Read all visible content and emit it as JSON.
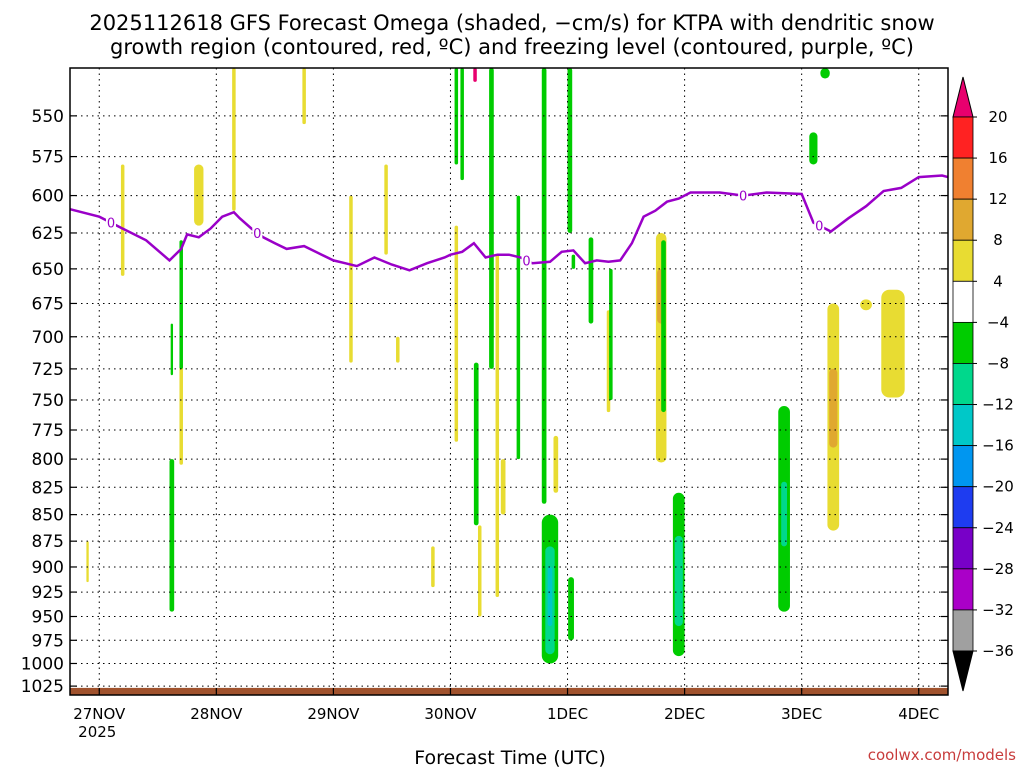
{
  "chart_data": {
    "type": "heatmap",
    "title_line1": "2025112618 GFS Forecast Omega (shaded, −cm/s) for KTPA with dendritic snow",
    "title_line2": "growth region (contoured, red, ºC) and freezing level (contoured, purple, ºC)",
    "xlabel": "Forecast Time (UTC)",
    "credit": "coolwx.com/models",
    "x_range_days": [
      -0.25,
      7.25
    ],
    "x_ticks": [
      {
        "day": 0,
        "label": "27NOV",
        "sub": "2025"
      },
      {
        "day": 1,
        "label": "28NOV",
        "sub": ""
      },
      {
        "day": 2,
        "label": "29NOV",
        "sub": ""
      },
      {
        "day": 3,
        "label": "30NOV",
        "sub": ""
      },
      {
        "day": 4,
        "label": "1DEC",
        "sub": ""
      },
      {
        "day": 5,
        "label": "2DEC",
        "sub": ""
      },
      {
        "day": 6,
        "label": "3DEC",
        "sub": ""
      },
      {
        "day": 7,
        "label": "4DEC",
        "sub": ""
      }
    ],
    "y_range_hpa": [
      1035,
      522
    ],
    "y_ticks": [
      550,
      575,
      600,
      625,
      650,
      675,
      700,
      725,
      750,
      775,
      800,
      825,
      850,
      875,
      900,
      925,
      950,
      975,
      1000,
      1025
    ],
    "colorbar": {
      "levels": [
        "20",
        "16",
        "12",
        "8",
        "4",
        "−4",
        "−8",
        "−12",
        "−16",
        "−20",
        "−24",
        "−28",
        "−32",
        "−36"
      ],
      "colors": [
        "#ff2222",
        "#f08030",
        "#e0a830",
        "#e8dc32",
        "#ffffff",
        "#00cc00",
        "#00d88c",
        "#00c8c8",
        "#0096f0",
        "#1e3cf0",
        "#7800c8",
        "#aa00c8",
        "#a0a0a0"
      ],
      "top_color": "#e8006e",
      "bottom_color": "#000000"
    },
    "freezing_level": {
      "label": "0",
      "color": "#9a00c8",
      "days": [
        -0.25,
        -0.1,
        0,
        0.2,
        0.4,
        0.6,
        0.7,
        0.75,
        0.85,
        0.95,
        1.05,
        1.15,
        1.2,
        1.3,
        1.4,
        1.5,
        1.6,
        1.75,
        1.9,
        2.0,
        2.1,
        2.2,
        2.35,
        2.5,
        2.65,
        2.8,
        2.95,
        3.0,
        3.1,
        3.2,
        3.3,
        3.4,
        3.5,
        3.6,
        3.7,
        3.85,
        3.95,
        4.05,
        4.15,
        4.25,
        4.35,
        4.45,
        4.55,
        4.65,
        4.75,
        4.85,
        4.95,
        5.05,
        5.15,
        5.3,
        5.5,
        5.7,
        6.0,
        6.1,
        6.25,
        6.4,
        6.55,
        6.7,
        6.85,
        7.0,
        7.2,
        7.25
      ],
      "hpa": [
        609,
        612,
        614,
        622,
        630,
        644,
        636,
        626,
        628,
        622,
        614,
        611,
        615,
        622,
        628,
        632,
        636,
        634,
        640,
        644,
        646,
        648,
        642,
        647,
        651,
        646,
        642,
        640,
        638,
        632,
        642,
        640,
        640,
        642,
        646,
        645,
        638,
        637,
        646,
        644,
        645,
        644,
        632,
        614,
        610,
        604,
        602,
        598,
        598,
        598,
        600,
        598,
        599,
        618,
        624,
        615,
        607,
        597,
        595,
        588,
        587,
        588
      ]
    },
    "omega_cells": [
      {
        "day": 3.21,
        "p_top": 522,
        "p_bot": 530,
        "w": 0.03,
        "value": 20
      },
      {
        "day": 4.8,
        "p_top": 625,
        "p_bot": 803,
        "w": 0.09,
        "value": 6
      },
      {
        "day": 4.8,
        "p_top": 650,
        "p_bot": 690,
        "w": 0.07,
        "value": 10
      },
      {
        "day": 6.27,
        "p_top": 675,
        "p_bot": 865,
        "w": 0.1,
        "value": 6
      },
      {
        "day": 6.27,
        "p_top": 725,
        "p_bot": 790,
        "w": 0.07,
        "value": 10
      },
      {
        "day": 6.78,
        "p_top": 665,
        "p_bot": 748,
        "w": 0.2,
        "value": 6
      },
      {
        "day": 6.55,
        "p_top": 672,
        "p_bot": 680,
        "w": 0.1,
        "value": 6
      },
      {
        "day": 0.85,
        "p_top": 580,
        "p_bot": 620,
        "w": 0.08,
        "value": 5
      },
      {
        "day": 0.2,
        "p_top": 580,
        "p_bot": 655,
        "w": 0.03,
        "value": 5
      },
      {
        "day": 1.15,
        "p_top": 522,
        "p_bot": 610,
        "w": 0.03,
        "value": 5
      },
      {
        "day": 1.75,
        "p_top": 522,
        "p_bot": 555,
        "w": 0.03,
        "value": 5
      },
      {
        "day": 2.45,
        "p_top": 580,
        "p_bot": 640,
        "w": 0.03,
        "value": 5
      },
      {
        "day": 2.15,
        "p_top": 600,
        "p_bot": 720,
        "w": 0.03,
        "value": 5
      },
      {
        "day": 3.05,
        "p_top": 620,
        "p_bot": 785,
        "w": 0.03,
        "value": 5
      },
      {
        "day": 3.4,
        "p_top": 640,
        "p_bot": 930,
        "w": 0.03,
        "value": 5
      },
      {
        "day": 3.45,
        "p_top": 800,
        "p_bot": 850,
        "w": 0.04,
        "value": 5
      },
      {
        "day": 3.9,
        "p_top": 780,
        "p_bot": 830,
        "w": 0.04,
        "value": 5
      },
      {
        "day": 4.35,
        "p_top": 680,
        "p_bot": 760,
        "w": 0.03,
        "value": 5
      },
      {
        "day": 0.7,
        "p_top": 720,
        "p_bot": 805,
        "w": 0.03,
        "value": 5
      },
      {
        "day": 2.55,
        "p_top": 700,
        "p_bot": 720,
        "w": 0.03,
        "value": 5
      },
      {
        "day": 2.85,
        "p_top": 880,
        "p_bot": 920,
        "w": 0.03,
        "value": 5
      },
      {
        "day": 3.25,
        "p_top": 860,
        "p_bot": 950,
        "w": 0.03,
        "value": 5
      },
      {
        "day": -0.1,
        "p_top": 875,
        "p_bot": 915,
        "w": 0.02,
        "value": 5
      },
      {
        "day": 0.7,
        "p_top": 630,
        "p_bot": 725,
        "w": 0.03,
        "value": -6
      },
      {
        "day": 0.62,
        "p_top": 690,
        "p_bot": 730,
        "w": 0.02,
        "value": -6
      },
      {
        "day": 0.62,
        "p_top": 800,
        "p_bot": 945,
        "w": 0.04,
        "value": -6
      },
      {
        "day": 3.05,
        "p_top": 522,
        "p_bot": 580,
        "w": 0.03,
        "value": -6
      },
      {
        "day": 3.1,
        "p_top": 522,
        "p_bot": 590,
        "w": 0.03,
        "value": -6
      },
      {
        "day": 3.35,
        "p_top": 522,
        "p_bot": 725,
        "w": 0.04,
        "value": -6
      },
      {
        "day": 3.22,
        "p_top": 720,
        "p_bot": 860,
        "w": 0.04,
        "value": -6
      },
      {
        "day": 3.58,
        "p_top": 600,
        "p_bot": 800,
        "w": 0.03,
        "value": -6
      },
      {
        "day": 3.8,
        "p_top": 522,
        "p_bot": 840,
        "w": 0.04,
        "value": -6
      },
      {
        "day": 4.02,
        "p_top": 522,
        "p_bot": 625,
        "w": 0.04,
        "value": -6
      },
      {
        "day": 4.05,
        "p_top": 640,
        "p_bot": 650,
        "w": 0.03,
        "value": -6
      },
      {
        "day": 4.2,
        "p_top": 628,
        "p_bot": 690,
        "w": 0.04,
        "value": -6
      },
      {
        "day": 4.37,
        "p_top": 650,
        "p_bot": 750,
        "w": 0.03,
        "value": -6
      },
      {
        "day": 4.82,
        "p_top": 630,
        "p_bot": 760,
        "w": 0.04,
        "value": -6
      },
      {
        "day": 4.95,
        "p_top": 830,
        "p_bot": 992,
        "w": 0.1,
        "value": -6
      },
      {
        "day": 5.85,
        "p_top": 755,
        "p_bot": 945,
        "w": 0.1,
        "value": -6
      },
      {
        "day": 6.2,
        "p_top": 522,
        "p_bot": 528,
        "w": 0.08,
        "value": -6
      },
      {
        "day": 6.1,
        "p_top": 560,
        "p_bot": 580,
        "w": 0.07,
        "value": -6
      },
      {
        "day": 3.85,
        "p_top": 850,
        "p_bot": 1000,
        "w": 0.14,
        "value": -6
      },
      {
        "day": 4.03,
        "p_top": 910,
        "p_bot": 975,
        "w": 0.05,
        "value": -6
      },
      {
        "day": 3.85,
        "p_top": 880,
        "p_bot": 990,
        "w": 0.08,
        "value": -10
      },
      {
        "day": 3.85,
        "p_top": 900,
        "p_bot": 960,
        "w": 0.04,
        "value": -14
      },
      {
        "day": 4.95,
        "p_top": 870,
        "p_bot": 960,
        "w": 0.07,
        "value": -10
      },
      {
        "day": 5.85,
        "p_top": 820,
        "p_bot": 880,
        "w": 0.05,
        "value": -10
      }
    ]
  }
}
